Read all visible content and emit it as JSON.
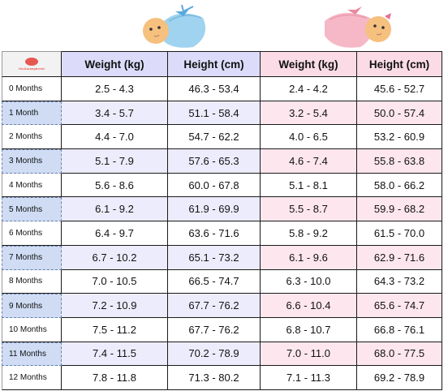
{
  "logo": {
    "name": "theAsianparent logo"
  },
  "headers": {
    "boy_weight": "Weight (kg)",
    "boy_height": "Height (cm)",
    "girl_weight": "Weight (kg)",
    "girl_height": "Height (cm)"
  },
  "colors": {
    "boy_header": "#dcdcfa",
    "girl_header": "#fbdce6",
    "boy_blanket": "#9fd3ef",
    "girl_blanket": "#f6b8c6"
  },
  "rows": [
    {
      "month": "0 Months",
      "boy_weight": "2.5 - 4.3",
      "boy_height": "46.3 - 53.4",
      "girl_weight": "2.4 - 4.2",
      "girl_height": "45.6 - 52.7"
    },
    {
      "month": "1 Month",
      "boy_weight": "3.4 - 5.7",
      "boy_height": "51.1 - 58.4",
      "girl_weight": "3.2 - 5.4",
      "girl_height": "50.0 - 57.4"
    },
    {
      "month": "2 Months",
      "boy_weight": "4.4 - 7.0",
      "boy_height": "54.7 - 62.2",
      "girl_weight": "4.0 - 6.5",
      "girl_height": "53.2 - 60.9"
    },
    {
      "month": "3 Months",
      "boy_weight": "5.1 - 7.9",
      "boy_height": "57.6 - 65.3",
      "girl_weight": "4.6 - 7.4",
      "girl_height": "55.8 - 63.8"
    },
    {
      "month": "4  Months",
      "boy_weight": "5.6 - 8.6",
      "boy_height": "60.0 - 67.8",
      "girl_weight": "5.1 - 8.1",
      "girl_height": "58.0 - 66.2"
    },
    {
      "month": "5  Months",
      "boy_weight": "6.1 - 9.2",
      "boy_height": "61.9 - 69.9",
      "girl_weight": "5.5 - 8.7",
      "girl_height": "59.9 - 68.2"
    },
    {
      "month": "6  Months",
      "boy_weight": "6.4 - 9.7",
      "boy_height": "63.6 - 71.6",
      "girl_weight": "5.8 - 9.2",
      "girl_height": "61.5 - 70.0"
    },
    {
      "month": "7  Months",
      "boy_weight": "6.7 - 10.2",
      "boy_height": "65.1 - 73.2",
      "girl_weight": "6.1 - 9.6",
      "girl_height": "62.9 - 71.6"
    },
    {
      "month": "8 Months",
      "boy_weight": "7.0 - 10.5",
      "boy_height": "66.5 - 74.7",
      "girl_weight": "6.3 - 10.0",
      "girl_height": "64.3 - 73.2"
    },
    {
      "month": "9 Months",
      "boy_weight": "7.2 - 10.9",
      "boy_height": "67.7 - 76.2",
      "girl_weight": "6.6 - 10.4",
      "girl_height": "65.6 - 74.7"
    },
    {
      "month": "10 Months",
      "boy_weight": "7.5 - 11.2",
      "boy_height": "67.7 - 76.2",
      "girl_weight": "6.8 - 10.7",
      "girl_height": "66.8 - 76.1"
    },
    {
      "month": "11 Months",
      "boy_weight": "7.4 - 11.5",
      "boy_height": "70.2 - 78.9",
      "girl_weight": "7.0 - 11.0",
      "girl_height": "68.0 - 77.5"
    },
    {
      "month": "12  Months",
      "boy_weight": "7.8 - 11.8",
      "boy_height": "71.3 - 80.2",
      "girl_weight": "7.1 - 11.3",
      "girl_height": "69.2 - 78.9"
    }
  ]
}
